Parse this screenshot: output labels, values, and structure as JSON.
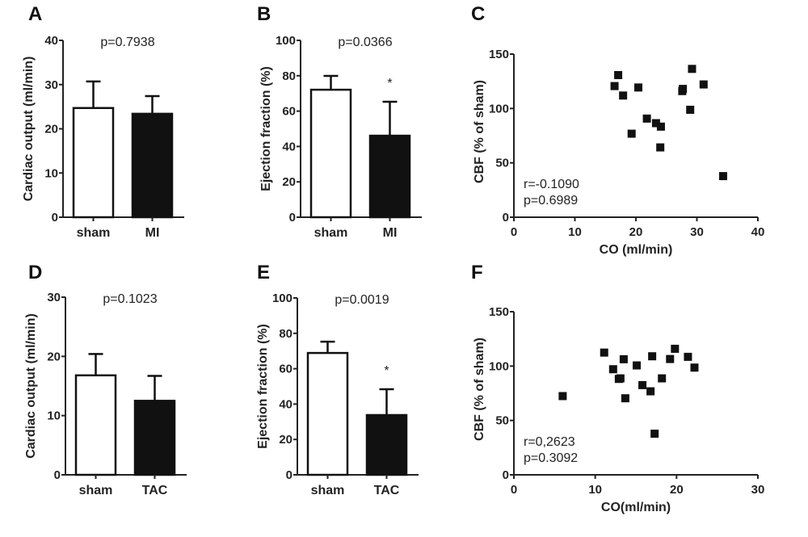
{
  "chart_data": [
    {
      "panel": "A",
      "type": "bar",
      "categories": [
        "sham",
        "MI"
      ],
      "values": [
        24.7,
        23.4
      ],
      "error_upper": [
        30.7,
        27.4
      ],
      "fills": [
        "#ffffff",
        "#111111"
      ],
      "ylabel": "Cardiac output (ml/min)",
      "ylim": [
        0,
        40
      ],
      "yticks": [
        0,
        10,
        20,
        30,
        40
      ],
      "annotation": "p=0.7938",
      "star": [
        false,
        false
      ]
    },
    {
      "panel": "B",
      "type": "bar",
      "categories": [
        "sham",
        "MI"
      ],
      "values": [
        72.1,
        46.1
      ],
      "error_upper": [
        79.9,
        65.3
      ],
      "fills": [
        "#ffffff",
        "#111111"
      ],
      "ylabel": "Ejection fraction (%)",
      "ylim": [
        0,
        100
      ],
      "yticks": [
        0,
        20,
        40,
        60,
        80,
        100
      ],
      "annotation": "p=0.0366",
      "star": [
        false,
        true
      ],
      "star_label": "*"
    },
    {
      "panel": "C",
      "type": "scatter",
      "xlabel": "CO (ml/min)",
      "ylabel": "CBF (% of sham)",
      "xlim": [
        0,
        40
      ],
      "ylim": [
        0,
        150
      ],
      "xticks": [
        0,
        10,
        20,
        30,
        40
      ],
      "yticks": [
        0,
        50,
        100,
        150
      ],
      "annotation": [
        "r=-0.1090",
        "p=0.6989"
      ],
      "points": [
        [
          16.5,
          120.6
        ],
        [
          17.1,
          130.7
        ],
        [
          17.9,
          111.9
        ],
        [
          20.4,
          119.3
        ],
        [
          19.3,
          76.8
        ],
        [
          21.8,
          90.7
        ],
        [
          23.3,
          86.5
        ],
        [
          24.1,
          83.3
        ],
        [
          24.0,
          64.2
        ],
        [
          27.6,
          116.0
        ],
        [
          27.7,
          118.0
        ],
        [
          29.2,
          136.4
        ],
        [
          28.9,
          98.8
        ],
        [
          31.1,
          122.1
        ],
        [
          34.3,
          37.8
        ]
      ]
    },
    {
      "panel": "D",
      "type": "bar",
      "categories": [
        "sham",
        "TAC"
      ],
      "values": [
        16.8,
        12.5
      ],
      "error_upper": [
        20.4,
        16.7
      ],
      "fills": [
        "#ffffff",
        "#111111"
      ],
      "ylabel": "Cardiac output (ml/min)",
      "ylim": [
        0,
        30
      ],
      "yticks": [
        0,
        10,
        20,
        30
      ],
      "annotation": "p=0.1023",
      "star": [
        false,
        false
      ]
    },
    {
      "panel": "E",
      "type": "bar",
      "categories": [
        "sham",
        "TAC"
      ],
      "values": [
        68.9,
        33.8
      ],
      "error_upper": [
        75.3,
        48.4
      ],
      "fills": [
        "#ffffff",
        "#111111"
      ],
      "ylabel": "Ejection fraction (%)",
      "ylim": [
        0,
        100
      ],
      "yticks": [
        0,
        20,
        40,
        60,
        80,
        100
      ],
      "annotation": "p=0.0019",
      "star": [
        false,
        true
      ],
      "star_label": "*"
    },
    {
      "panel": "F",
      "type": "scatter",
      "xlabel": "CO(ml/min)",
      "ylabel": "CBF (% of sham)",
      "xlim": [
        0,
        30
      ],
      "ylim": [
        0,
        150
      ],
      "xticks": [
        0,
        10,
        20,
        30
      ],
      "yticks": [
        0,
        50,
        100,
        150
      ],
      "annotation": [
        "r=0,2623",
        "p=0.3092"
      ],
      "points": [
        [
          6.0,
          72.4
        ],
        [
          11.1,
          112.4
        ],
        [
          12.2,
          97.1
        ],
        [
          12.9,
          88.2
        ],
        [
          13.1,
          88.7
        ],
        [
          13.5,
          106.3
        ],
        [
          13.7,
          70.4
        ],
        [
          15.1,
          100.6
        ],
        [
          15.8,
          82.5
        ],
        [
          17.0,
          109.0
        ],
        [
          16.8,
          76.8
        ],
        [
          17.3,
          37.8
        ],
        [
          18.2,
          88.7
        ],
        [
          19.2,
          106.5
        ],
        [
          19.8,
          115.9
        ],
        [
          21.4,
          108.5
        ],
        [
          22.2,
          98.6
        ]
      ]
    }
  ]
}
